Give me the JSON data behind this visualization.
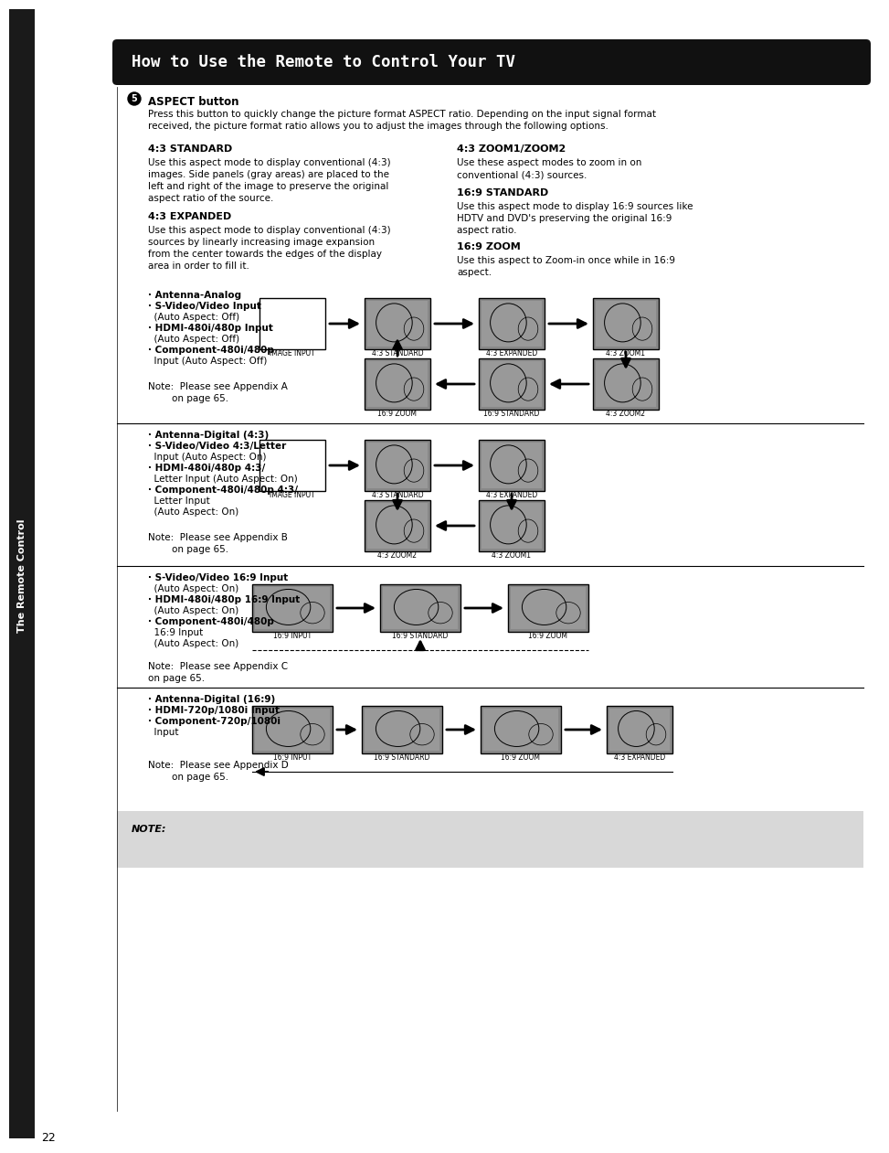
{
  "title": "How to Use the Remote to Control Your TV",
  "page_number": "22",
  "sidebar_text": "The Remote Control",
  "aspect_button_text": "ASPECT button",
  "aspect_intro_line1": "Press this button to quickly change the picture format ASPECT ratio. Depending on the input signal format",
  "aspect_intro_line2": "received, the picture format ratio allows you to adjust the images through the following options.",
  "sec_titles": [
    "4:3 STANDARD",
    "4:3 EXPANDED",
    "4:3 ZOOM1/ZOOM2",
    "16:9 STANDARD",
    "16:9 ZOOM"
  ],
  "sec_bodies": [
    [
      "Use this aspect mode to display conventional (4:3)",
      "images. Side panels (gray areas) are placed to the",
      "left and right of the image to preserve the original",
      "aspect ratio of the source."
    ],
    [
      "Use this aspect mode to display conventional (4:3)",
      "sources by linearly increasing image expansion",
      "from the center towards the edges of the display",
      "area in order to fill it."
    ],
    [
      "Use these aspect modes to zoom in on",
      "conventional (4:3) sources."
    ],
    [
      "Use this aspect mode to display 16:9 sources like",
      "HDTV and DVD's preserving the original 16:9",
      "aspect ratio."
    ],
    [
      "Use this aspect to Zoom-in once while in 16:9",
      "aspect."
    ]
  ],
  "diag_a_bullets": [
    "· Antenna-Analog",
    "· S-Video/Video Input",
    "  (Auto Aspect: Off)",
    "· HDMI-480i/480p Input",
    "  (Auto Aspect: Off)",
    "· Component-480i/480p",
    "  Input (Auto Aspect: Off)"
  ],
  "diag_a_note": [
    "Note:  Please see Appendix A",
    "        on page 65."
  ],
  "diag_a_top": [
    "IMAGE INPUT",
    "4:3 STANDARD",
    "4:3 EXPANDED",
    "4:3 ZOOM1"
  ],
  "diag_a_bot": [
    "16:9 ZOOM",
    "16:9 STANDARD",
    "4:3 ZOOM2"
  ],
  "diag_b_bullets": [
    "· Antenna-Digital (4:3)",
    "· S-Video/Video 4:3/Letter",
    "  Input (Auto Aspect: On)",
    "· HDMI-480i/480p 4:3/",
    "  Letter Input (Auto Aspect: On)",
    "· Component-480i/480p 4:3/",
    "  Letter Input",
    "  (Auto Aspect: On)"
  ],
  "diag_b_note": [
    "Note:  Please see Appendix B",
    "        on page 65."
  ],
  "diag_b_top": [
    "IMAGE INPUT",
    "4:3 STANDARD",
    "4:3 EXPANDED"
  ],
  "diag_b_bot": [
    "4:3 ZOOM2",
    "4:3 ZOOM1"
  ],
  "diag_c_bullets": [
    "· S-Video/Video 16:9 Input",
    "  (Auto Aspect: On)",
    "· HDMI-480i/480p 16:9 Input",
    "  (Auto Aspect: On)",
    "· Component-480i/480p",
    "  16:9 Input",
    "  (Auto Aspect: On)"
  ],
  "diag_c_note": [
    "Note:  Please see Appendix C",
    "on page 65."
  ],
  "diag_c_top": [
    "16:9 INPUT",
    "16:9 STANDARD",
    "16:9 ZOOM"
  ],
  "diag_d_bullets": [
    "· Antenna-Digital (16:9)",
    "· HDMI-720p/1080i Input",
    "· Component-720p/1080i",
    "  Input"
  ],
  "diag_d_note": [
    "Note:  Please see Appendix D",
    "        on page 65."
  ],
  "diag_d_top": [
    "16:9 INPUT",
    "16:9 STANDARD",
    "16:9 ZOOM",
    "4:3 EXPANDED"
  ],
  "note_label": "NOTE:"
}
